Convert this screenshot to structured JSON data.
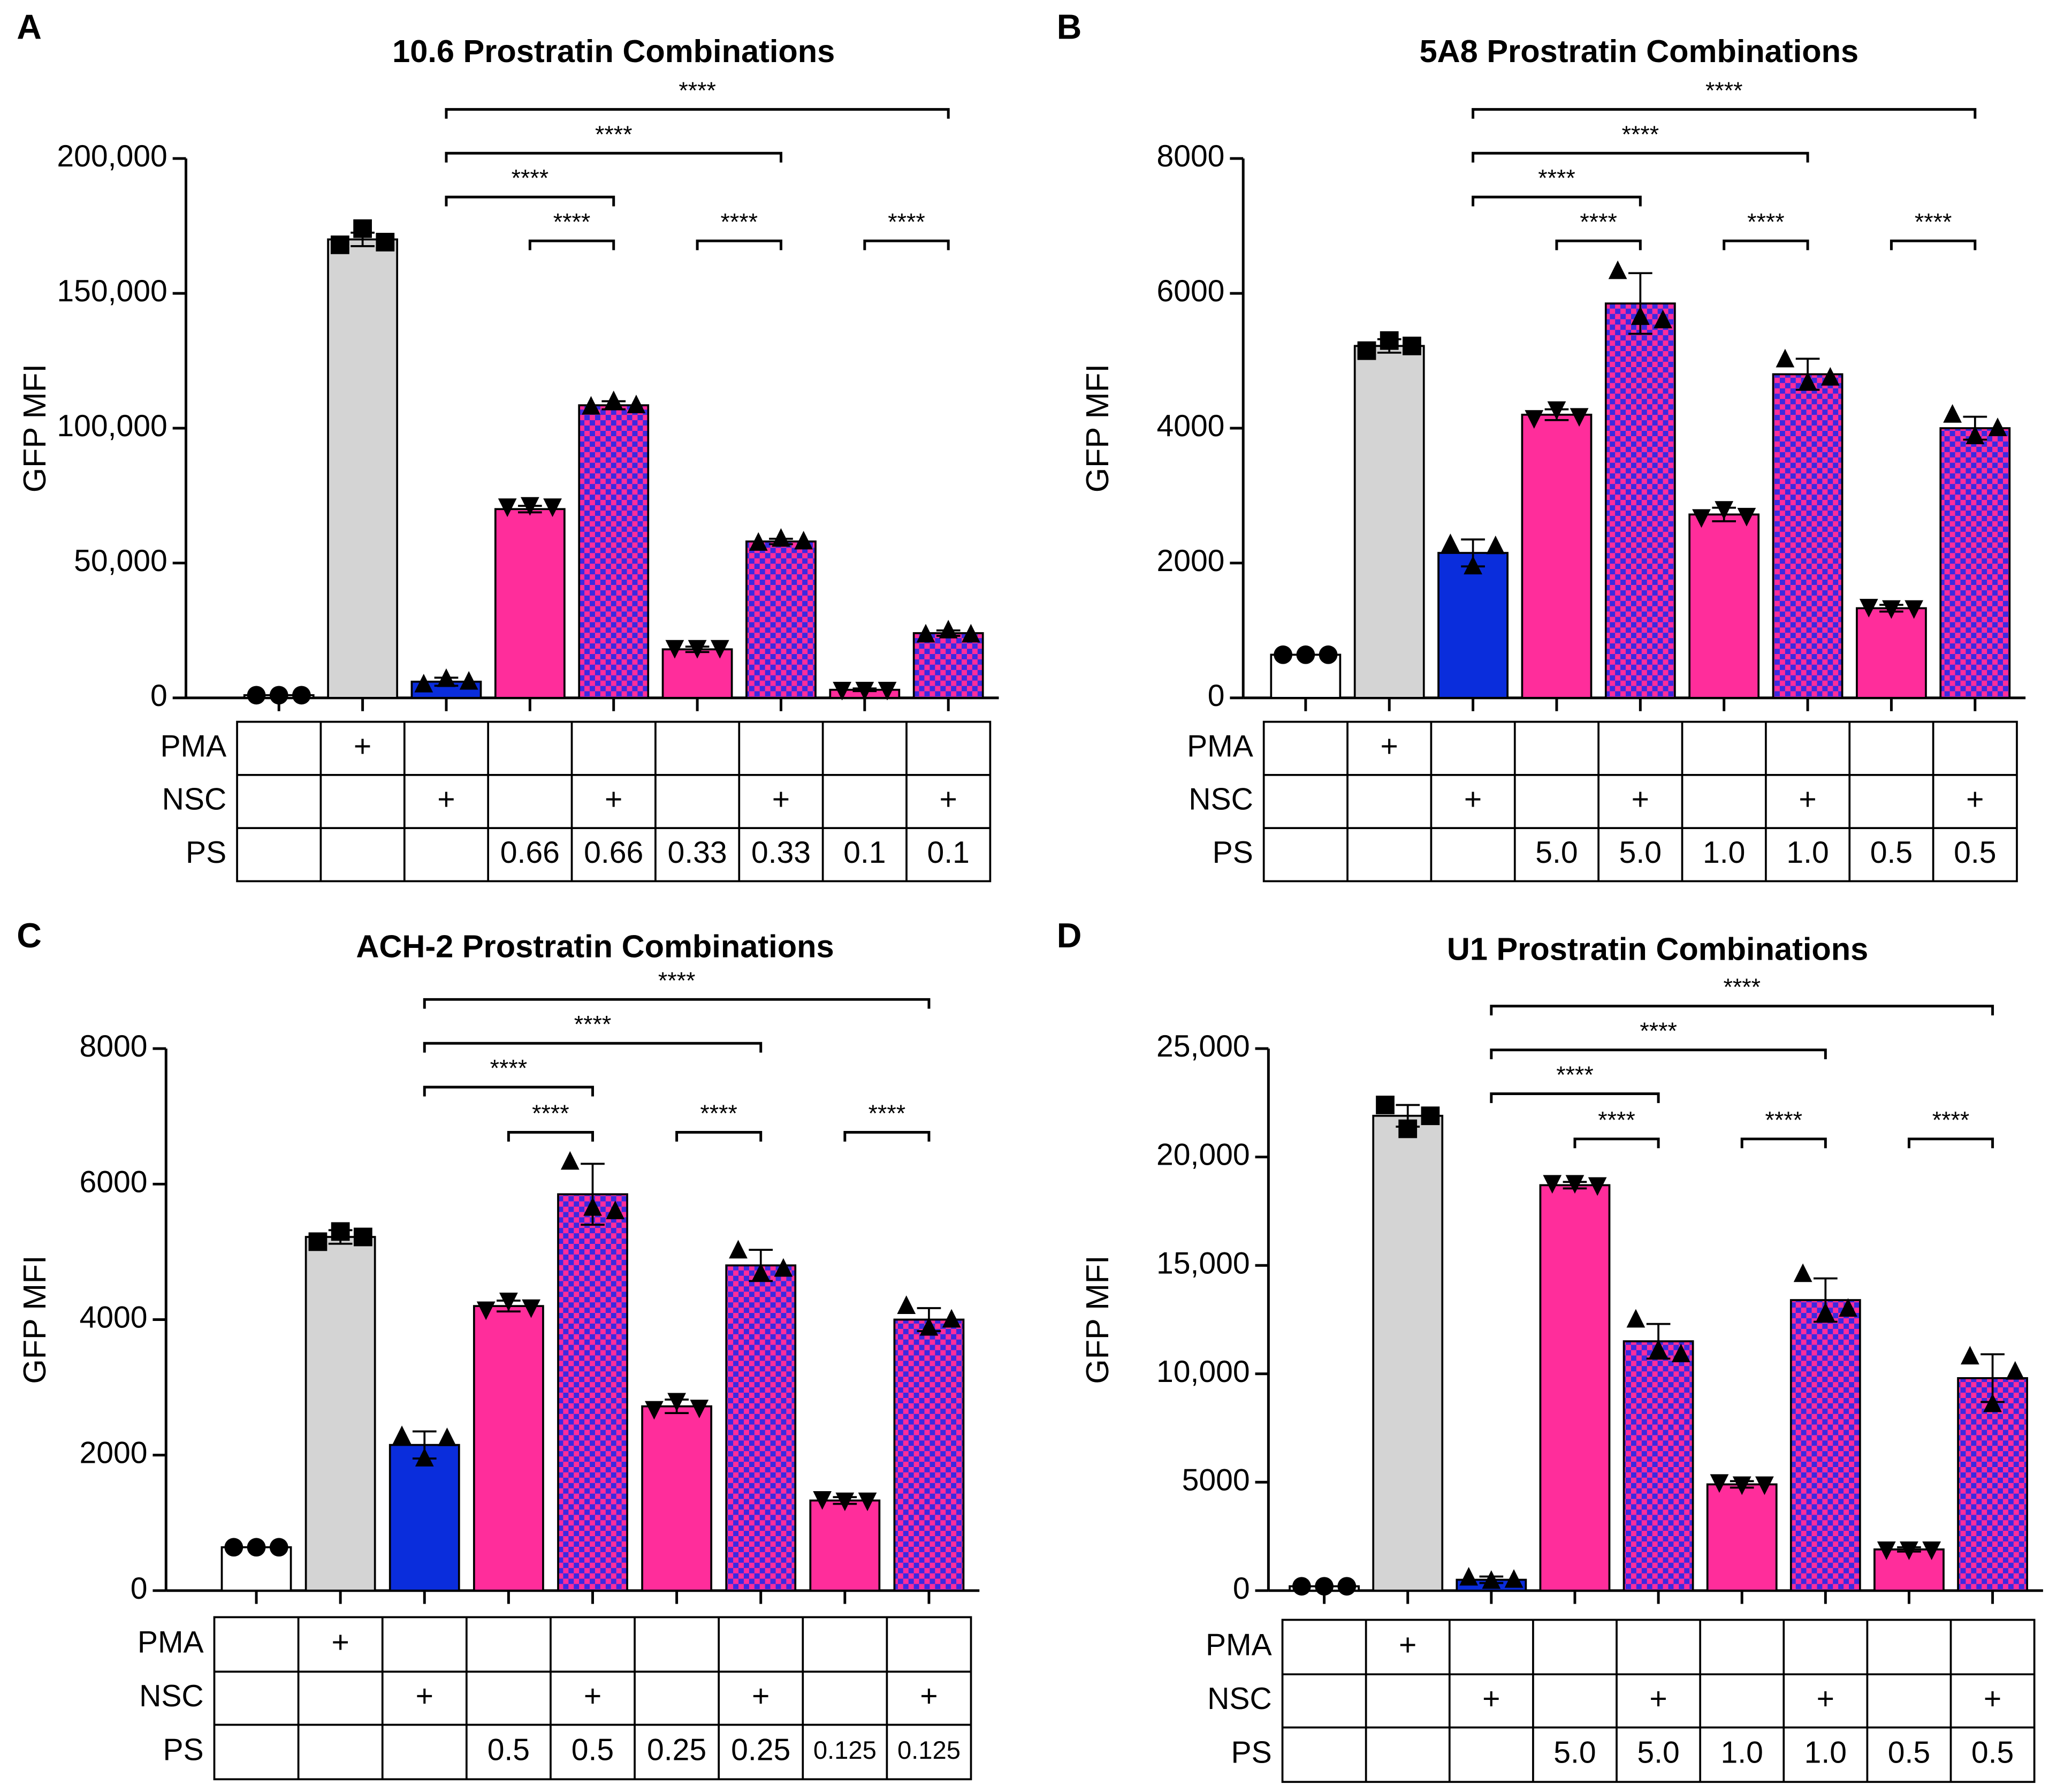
{
  "chart_data": [
    {
      "type": "bar",
      "panel": "A",
      "title": "10.6 Prostratin Combinations",
      "ylabel": "GFP MFI",
      "ylim": [
        0,
        200000
      ],
      "yticks": [
        0,
        {
          "value": 50000,
          "label": "50,000"
        },
        {
          "value": 100000,
          "label": "100,000"
        },
        {
          "value": 150000,
          "label": "150,000"
        },
        {
          "value": 200000,
          "label": "200,000"
        }
      ],
      "values": [
        1000,
        170000,
        6000,
        70000,
        108500,
        18000,
        58000,
        3000,
        24000
      ],
      "errors": [
        0,
        2500,
        1500,
        1200,
        1500,
        1000,
        1000,
        500,
        1000
      ],
      "points": [
        [
          1000,
          1000,
          1000
        ],
        [
          168000,
          174000,
          169000
        ],
        [
          5000,
          7000,
          6000
        ],
        [
          71000,
          71500,
          71000
        ],
        [
          108000,
          110000,
          108500
        ],
        [
          18500,
          18500,
          18500
        ],
        [
          57500,
          59000,
          58000
        ],
        [
          3000,
          3000,
          3000
        ],
        [
          23500,
          25000,
          23500
        ]
      ],
      "bar_colors": [
        "#ffffff",
        "#d4d4d4",
        "#0a2ddc",
        "#ff2d9b",
        "#ff2d9b",
        "#ff2d9b",
        "#ff2d9b",
        "#ff2d9b",
        "#ff2d9b"
      ],
      "checkered": [
        false,
        false,
        false,
        false,
        true,
        false,
        true,
        false,
        true
      ],
      "check_color": "#3b2ae0",
      "markers": [
        "circle",
        "square",
        "triangle",
        "triangle-down",
        "triangle",
        "triangle-down",
        "triangle",
        "triangle-down",
        "triangle"
      ],
      "brackets": [
        {
          "from": 2,
          "to": 8,
          "label": "****"
        },
        {
          "from": 2,
          "to": 6,
          "label": "****"
        },
        {
          "from": 2,
          "to": 4,
          "label": "****"
        },
        {
          "from": 3,
          "to": 4,
          "label": "****"
        },
        {
          "from": 5,
          "to": 6,
          "label": "****"
        },
        {
          "from": 7,
          "to": 8,
          "label": "****"
        }
      ],
      "table": [
        {
          "label": "PMA",
          "cells": [
            null,
            "+",
            null,
            null,
            null,
            null,
            null,
            null,
            null
          ]
        },
        {
          "label": "NSC",
          "cells": [
            null,
            null,
            "+",
            null,
            "+",
            null,
            "+",
            null,
            "+"
          ]
        },
        {
          "label": "PS",
          "cells": [
            null,
            null,
            null,
            "0.66",
            "0.66",
            "0.33",
            "0.33",
            "0.1",
            "0.1"
          ]
        }
      ]
    },
    {
      "type": "bar",
      "panel": "B",
      "title": "5A8 Prostratin Combinations",
      "ylabel": "GFP MFI",
      "ylim": [
        0,
        8000
      ],
      "yticks": [
        0,
        2000,
        4000,
        6000,
        8000
      ],
      "values": [
        640,
        5220,
        2150,
        4200,
        5850,
        2720,
        4800,
        1330,
        4000
      ],
      "errors": [
        0,
        100,
        200,
        80,
        450,
        100,
        230,
        50,
        170
      ],
      "points": [
        [
          640,
          640,
          640
        ],
        [
          5150,
          5300,
          5220
        ],
        [
          2280,
          1950,
          2250
        ],
        [
          4150,
          4280,
          4180
        ],
        [
          6330,
          5650,
          5600
        ],
        [
          2680,
          2800,
          2700
        ],
        [
          5020,
          4680,
          4750
        ],
        [
          1350,
          1330,
          1330
        ],
        [
          4200,
          3880,
          4000
        ]
      ],
      "bar_colors": [
        "#ffffff",
        "#d4d4d4",
        "#0a2ddc",
        "#ff2d9b",
        "#ff2d9b",
        "#ff2d9b",
        "#ff2d9b",
        "#ff2d9b",
        "#ff2d9b"
      ],
      "checkered": [
        false,
        false,
        false,
        false,
        true,
        false,
        true,
        false,
        true
      ],
      "check_color": "#3b2ae0",
      "markers": [
        "circle",
        "square",
        "triangle",
        "triangle-down",
        "triangle",
        "triangle-down",
        "triangle",
        "triangle-down",
        "triangle"
      ],
      "brackets": [
        {
          "from": 2,
          "to": 8,
          "label": "****"
        },
        {
          "from": 2,
          "to": 6,
          "label": "****"
        },
        {
          "from": 2,
          "to": 4,
          "label": "****"
        },
        {
          "from": 3,
          "to": 4,
          "label": "****"
        },
        {
          "from": 5,
          "to": 6,
          "label": "****"
        },
        {
          "from": 7,
          "to": 8,
          "label": "****"
        }
      ],
      "table": [
        {
          "label": "PMA",
          "cells": [
            null,
            "+",
            null,
            null,
            null,
            null,
            null,
            null,
            null
          ]
        },
        {
          "label": "NSC",
          "cells": [
            null,
            null,
            "+",
            null,
            "+",
            null,
            "+",
            null,
            "+"
          ]
        },
        {
          "label": "PS",
          "cells": [
            null,
            null,
            null,
            "5.0",
            "5.0",
            "1.0",
            "1.0",
            "0.5",
            "0.5"
          ]
        }
      ]
    },
    {
      "type": "bar",
      "panel": "C",
      "title": "ACH-2 Prostratin Combinations",
      "ylabel": "GFP MFI",
      "ylim": [
        0,
        8000
      ],
      "yticks": [
        0,
        2000,
        4000,
        6000,
        8000
      ],
      "values": [
        640,
        5220,
        2150,
        4200,
        5850,
        2720,
        4800,
        1330,
        4000
      ],
      "errors": [
        0,
        100,
        200,
        80,
        450,
        100,
        230,
        50,
        170
      ],
      "points": [
        [
          640,
          640,
          640
        ],
        [
          5150,
          5300,
          5220
        ],
        [
          2280,
          1950,
          2250
        ],
        [
          4150,
          4280,
          4180
        ],
        [
          6330,
          5650,
          5600
        ],
        [
          2680,
          2800,
          2700
        ],
        [
          5020,
          4680,
          4750
        ],
        [
          1350,
          1330,
          1330
        ],
        [
          4200,
          3880,
          4000
        ]
      ],
      "bar_colors": [
        "#ffffff",
        "#d4d4d4",
        "#0a2ddc",
        "#ff2d9b",
        "#ff2d9b",
        "#ff2d9b",
        "#ff2d9b",
        "#ff2d9b",
        "#ff2d9b"
      ],
      "checkered": [
        false,
        false,
        false,
        false,
        true,
        false,
        true,
        false,
        true
      ],
      "check_color": "#3b2ae0",
      "markers": [
        "circle",
        "square",
        "triangle",
        "triangle-down",
        "triangle",
        "triangle-down",
        "triangle",
        "triangle-down",
        "triangle"
      ],
      "brackets": [
        {
          "from": 2,
          "to": 8,
          "label": "****"
        },
        {
          "from": 2,
          "to": 6,
          "label": "****"
        },
        {
          "from": 2,
          "to": 4,
          "label": "****"
        },
        {
          "from": 3,
          "to": 4,
          "label": "****"
        },
        {
          "from": 5,
          "to": 6,
          "label": "****"
        },
        {
          "from": 7,
          "to": 8,
          "label": "****"
        }
      ],
      "table": [
        {
          "label": "PMA",
          "cells": [
            null,
            "+",
            null,
            null,
            null,
            null,
            null,
            null,
            null
          ]
        },
        {
          "label": "NSC",
          "cells": [
            null,
            null,
            "+",
            null,
            "+",
            null,
            "+",
            null,
            "+"
          ]
        },
        {
          "label": "PS",
          "cells": [
            null,
            null,
            null,
            "0.5",
            "0.5",
            "0.25",
            "0.25",
            "0.125",
            "0.125"
          ]
        }
      ]
    },
    {
      "type": "bar",
      "panel": "D",
      "title": "U1 Prostratin Combinations",
      "ylabel": "GFP MFI",
      "ylim": [
        0,
        25000
      ],
      "yticks": [
        0,
        5000,
        {
          "value": 10000,
          "label": "10,000"
        },
        {
          "value": 15000,
          "label": "15,000"
        },
        {
          "value": 20000,
          "label": "20,000"
        },
        {
          "value": 25000,
          "label": "25,000"
        }
      ],
      "values": [
        200,
        21900,
        500,
        18700,
        11500,
        4900,
        13400,
        1900,
        9800
      ],
      "errors": [
        0,
        500,
        150,
        150,
        800,
        150,
        1000,
        100,
        1100
      ],
      "points": [
        [
          200,
          200,
          200
        ],
        [
          22400,
          21300,
          21900
        ],
        [
          600,
          450,
          500
        ],
        [
          18800,
          18800,
          18700
        ],
        [
          12500,
          11100,
          10900
        ],
        [
          5000,
          4900,
          4900
        ],
        [
          14600,
          12800,
          13000
        ],
        [
          1900,
          1900,
          1900
        ],
        [
          10800,
          8600,
          10100
        ]
      ],
      "bar_colors": [
        "#ffffff",
        "#d4d4d4",
        "#0a2ddc",
        "#ff2d9b",
        "#ff2d9b",
        "#ff2d9b",
        "#ff2d9b",
        "#ff2d9b",
        "#ff2d9b"
      ],
      "checkered": [
        false,
        false,
        false,
        false,
        true,
        false,
        true,
        false,
        true
      ],
      "check_color": "#3b2ae0",
      "markers": [
        "circle",
        "square",
        "triangle",
        "triangle-down",
        "triangle",
        "triangle-down",
        "triangle",
        "triangle-down",
        "triangle"
      ],
      "brackets": [
        {
          "from": 2,
          "to": 8,
          "label": "****"
        },
        {
          "from": 2,
          "to": 6,
          "label": "****"
        },
        {
          "from": 2,
          "to": 4,
          "label": "****"
        },
        {
          "from": 3,
          "to": 4,
          "label": "****"
        },
        {
          "from": 5,
          "to": 6,
          "label": "****"
        },
        {
          "from": 7,
          "to": 8,
          "label": "****"
        }
      ],
      "table": [
        {
          "label": "PMA",
          "cells": [
            null,
            "+",
            null,
            null,
            null,
            null,
            null,
            null,
            null
          ]
        },
        {
          "label": "NSC",
          "cells": [
            null,
            null,
            "+",
            null,
            "+",
            null,
            "+",
            null,
            "+"
          ]
        },
        {
          "label": "PS",
          "cells": [
            null,
            null,
            null,
            "5.0",
            "5.0",
            "1.0",
            "1.0",
            "0.5",
            "0.5"
          ]
        }
      ]
    }
  ]
}
